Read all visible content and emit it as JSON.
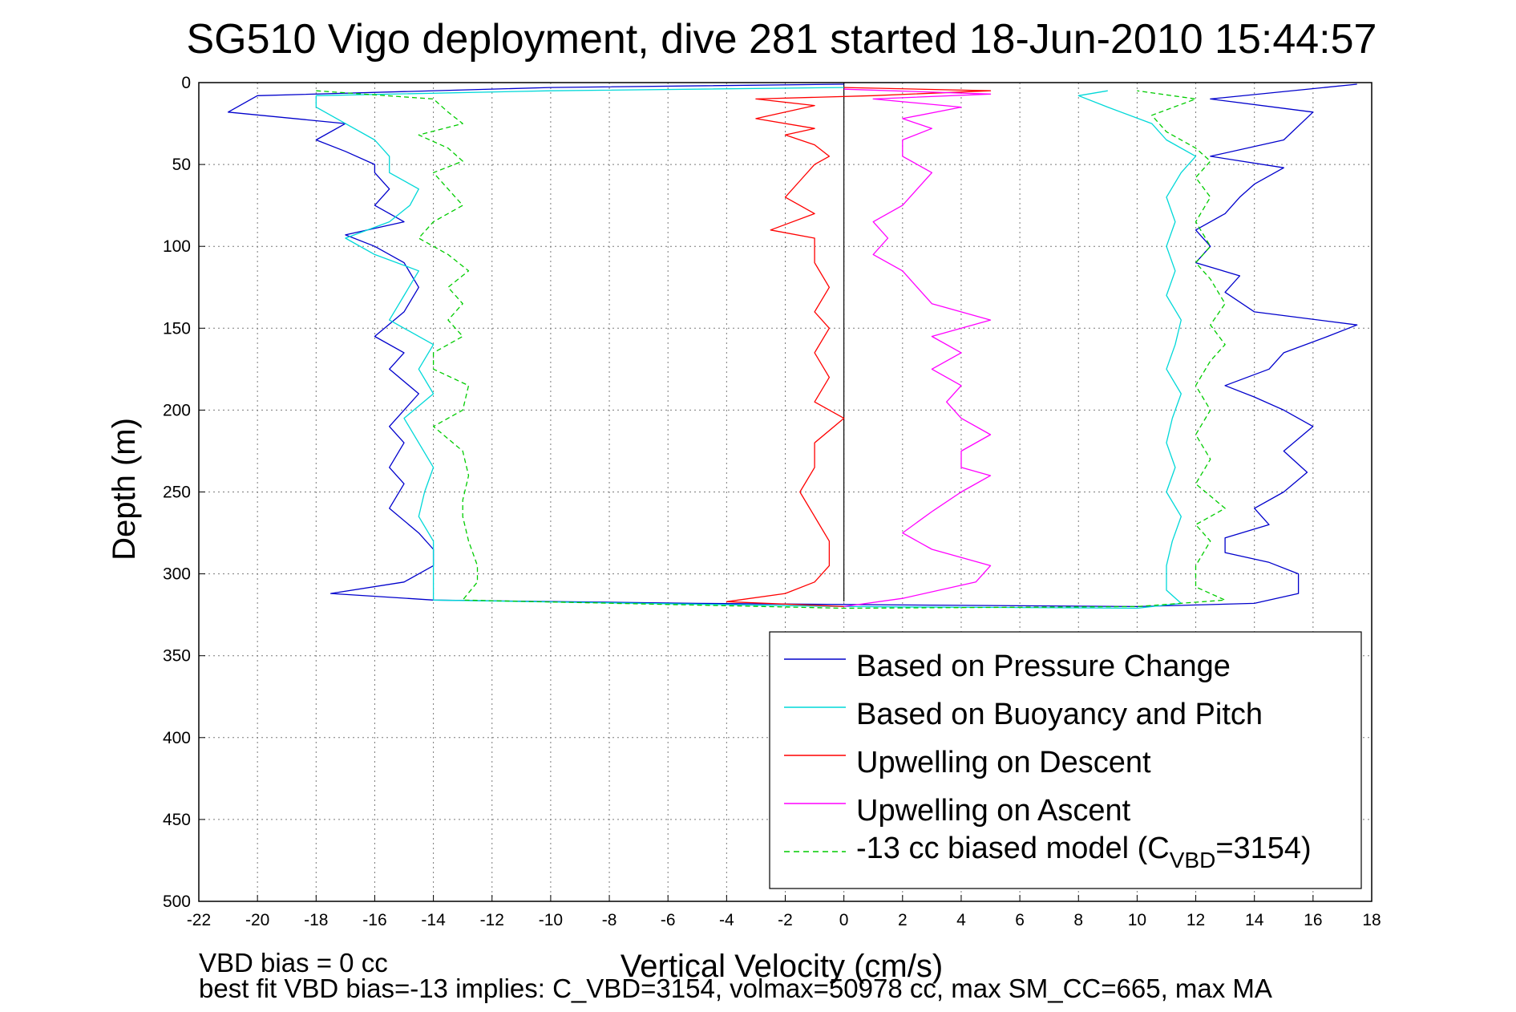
{
  "chart_data": {
    "type": "line",
    "title": "SG510 Vigo deployment, dive 281 started 18-Jun-2010 15:44:57",
    "xlabel": "Vertical Velocity (cm/s)",
    "ylabel": "Depth (m)",
    "xlim": [
      -22,
      18
    ],
    "ylim": [
      0,
      500
    ],
    "y_reversed": true,
    "grid": true,
    "legend_position": "bottom-right",
    "x_ticks": [
      "-22",
      "-20",
      "-18",
      "-16",
      "-14",
      "-12",
      "-10",
      "-8",
      "-6",
      "-4",
      "-2",
      "0",
      "2",
      "4",
      "6",
      "8",
      "10",
      "12",
      "14",
      "16",
      "18"
    ],
    "y_ticks": [
      "0",
      "50",
      "100",
      "150",
      "200",
      "250",
      "300",
      "350",
      "400",
      "450",
      "500"
    ],
    "notes": [
      "VBD bias = 0 cc",
      "best fit VBD bias=-13 implies: C_VBD=3154, volmax=50978 cc, max SM_CC=665, max MA"
    ],
    "legend": {
      "entries": [
        "Based on Pressure Change",
        "Based on Buoyancy and Pitch",
        "Upwelling on Descent",
        "Upwelling on Ascent"
      ],
      "model_prefix": "-13 cc biased model (C",
      "model_sub": "VBD",
      "model_suffix": "=3154)"
    },
    "series": [
      {
        "name": "Based on Pressure Change",
        "color": "#0000cc",
        "style": "solid",
        "points": [
          [
            0,
            1
          ],
          [
            -10,
            3
          ],
          [
            -20,
            8
          ],
          [
            -21,
            18
          ],
          [
            -17,
            25
          ],
          [
            -18,
            35
          ],
          [
            -17,
            42
          ],
          [
            -16,
            50
          ],
          [
            -16,
            55
          ],
          [
            -15.5,
            65
          ],
          [
            -16,
            75
          ],
          [
            -15,
            85
          ],
          [
            -17,
            93
          ],
          [
            -16,
            100
          ],
          [
            -15,
            110
          ],
          [
            -14.5,
            125
          ],
          [
            -15,
            140
          ],
          [
            -16,
            155
          ],
          [
            -15,
            165
          ],
          [
            -15.5,
            175
          ],
          [
            -14.5,
            190
          ],
          [
            -15,
            200
          ],
          [
            -15.5,
            210
          ],
          [
            -15,
            220
          ],
          [
            -15.5,
            235
          ],
          [
            -15,
            245
          ],
          [
            -15.5,
            260
          ],
          [
            -14.5,
            275
          ],
          [
            -14,
            285
          ],
          [
            -14,
            295
          ],
          [
            -15,
            305
          ],
          [
            -17.5,
            312
          ],
          [
            -14,
            316
          ],
          [
            -5,
            318
          ],
          [
            2,
            319
          ],
          [
            10,
            320
          ],
          [
            14,
            318
          ],
          [
            15.5,
            312
          ],
          [
            15.5,
            300
          ],
          [
            14.5,
            293
          ],
          [
            13,
            287
          ],
          [
            13,
            278
          ],
          [
            14.5,
            270
          ],
          [
            14,
            260
          ],
          [
            15,
            250
          ],
          [
            15.8,
            238
          ],
          [
            15,
            225
          ],
          [
            16,
            210
          ],
          [
            15,
            200
          ],
          [
            14,
            192
          ],
          [
            13,
            185
          ],
          [
            14.5,
            175
          ],
          [
            15,
            165
          ],
          [
            16.5,
            155
          ],
          [
            17.5,
            148
          ],
          [
            14,
            140
          ],
          [
            13,
            128
          ],
          [
            13.5,
            118
          ],
          [
            12,
            110
          ],
          [
            12.5,
            100
          ],
          [
            12,
            90
          ],
          [
            13,
            80
          ],
          [
            13.5,
            70
          ],
          [
            14,
            62
          ],
          [
            15,
            52
          ],
          [
            12.5,
            45
          ],
          [
            15,
            35
          ],
          [
            16,
            18
          ],
          [
            12.5,
            10
          ],
          [
            17.5,
            1
          ]
        ]
      },
      {
        "name": "Based on Buoyancy and Pitch",
        "color": "#00d8d8",
        "style": "solid",
        "points": [
          [
            0,
            3
          ],
          [
            -10,
            5
          ],
          [
            -18,
            8
          ],
          [
            -18,
            15
          ],
          [
            -17,
            25
          ],
          [
            -16,
            35
          ],
          [
            -15.5,
            45
          ],
          [
            -15.5,
            55
          ],
          [
            -14.5,
            65
          ],
          [
            -14.8,
            75
          ],
          [
            -15.5,
            85
          ],
          [
            -17,
            95
          ],
          [
            -16,
            105
          ],
          [
            -14.5,
            115
          ],
          [
            -15,
            130
          ],
          [
            -15.5,
            145
          ],
          [
            -14,
            160
          ],
          [
            -14.5,
            175
          ],
          [
            -14,
            190
          ],
          [
            -15,
            205
          ],
          [
            -14.5,
            220
          ],
          [
            -14,
            235
          ],
          [
            -14.3,
            250
          ],
          [
            -14.5,
            265
          ],
          [
            -14,
            280
          ],
          [
            -14,
            295
          ],
          [
            -14,
            305
          ],
          [
            -14,
            316
          ],
          [
            0,
            320
          ],
          [
            10,
            321
          ],
          [
            11.5,
            318
          ],
          [
            11,
            310
          ],
          [
            11,
            295
          ],
          [
            11.2,
            280
          ],
          [
            11.5,
            265
          ],
          [
            11,
            250
          ],
          [
            11.3,
            235
          ],
          [
            11,
            220
          ],
          [
            11.2,
            205
          ],
          [
            11.5,
            190
          ],
          [
            11,
            175
          ],
          [
            11.3,
            160
          ],
          [
            11.5,
            145
          ],
          [
            11,
            130
          ],
          [
            11.3,
            115
          ],
          [
            11,
            100
          ],
          [
            11.3,
            85
          ],
          [
            11,
            70
          ],
          [
            11.5,
            55
          ],
          [
            12,
            45
          ],
          [
            11,
            35
          ],
          [
            10.5,
            25
          ],
          [
            9,
            15
          ],
          [
            8,
            8
          ],
          [
            9,
            5
          ]
        ]
      },
      {
        "name": "Upwelling on Descent",
        "color": "#ff0000",
        "style": "solid",
        "points": [
          [
            0,
            3
          ],
          [
            5,
            5
          ],
          [
            1,
            8
          ],
          [
            -3,
            10
          ],
          [
            -1,
            14
          ],
          [
            -2,
            18
          ],
          [
            -3,
            22
          ],
          [
            -1,
            28
          ],
          [
            -2,
            32
          ],
          [
            -1,
            38
          ],
          [
            -0.5,
            45
          ],
          [
            -1,
            50
          ],
          [
            -1.5,
            60
          ],
          [
            -2,
            70
          ],
          [
            -1,
            80
          ],
          [
            -2.5,
            90
          ],
          [
            -1,
            95
          ],
          [
            -1,
            110
          ],
          [
            -0.5,
            125
          ],
          [
            -1,
            140
          ],
          [
            -0.5,
            150
          ],
          [
            -1,
            165
          ],
          [
            -0.5,
            180
          ],
          [
            -1,
            195
          ],
          [
            0,
            205
          ],
          [
            -1,
            220
          ],
          [
            -1,
            235
          ],
          [
            -1.5,
            250
          ],
          [
            -1,
            265
          ],
          [
            -0.5,
            280
          ],
          [
            -0.5,
            295
          ],
          [
            -1,
            305
          ],
          [
            -2,
            312
          ],
          [
            -4,
            317
          ],
          [
            0,
            320
          ]
        ]
      },
      {
        "name": "Upwelling on Ascent",
        "color": "#ff00ff",
        "style": "solid",
        "points": [
          [
            0,
            4
          ],
          [
            5,
            7
          ],
          [
            1,
            10
          ],
          [
            4,
            15
          ],
          [
            2,
            22
          ],
          [
            3,
            28
          ],
          [
            2,
            35
          ],
          [
            2,
            45
          ],
          [
            3,
            55
          ],
          [
            2.5,
            65
          ],
          [
            2,
            75
          ],
          [
            1,
            85
          ],
          [
            1.5,
            95
          ],
          [
            1,
            105
          ],
          [
            2,
            115
          ],
          [
            2.5,
            125
          ],
          [
            3,
            135
          ],
          [
            5,
            145
          ],
          [
            3,
            155
          ],
          [
            4,
            165
          ],
          [
            3,
            175
          ],
          [
            4,
            185
          ],
          [
            3.5,
            195
          ],
          [
            4,
            205
          ],
          [
            5,
            215
          ],
          [
            4,
            225
          ],
          [
            4,
            235
          ],
          [
            5,
            240
          ],
          [
            4,
            250
          ],
          [
            3,
            262
          ],
          [
            2,
            275
          ],
          [
            3,
            285
          ],
          [
            5,
            295
          ],
          [
            4.5,
            305
          ],
          [
            2,
            315
          ],
          [
            0,
            320
          ]
        ]
      },
      {
        "name": "-13 cc biased model (C_VBD=3154)",
        "color": "#00cc00",
        "style": "dashed",
        "points": [
          [
            -18,
            5
          ],
          [
            -14,
            10
          ],
          [
            -13.5,
            18
          ],
          [
            -13,
            25
          ],
          [
            -14.5,
            32
          ],
          [
            -13.5,
            40
          ],
          [
            -13,
            48
          ],
          [
            -14,
            55
          ],
          [
            -13.5,
            65
          ],
          [
            -13,
            75
          ],
          [
            -14,
            85
          ],
          [
            -14.5,
            95
          ],
          [
            -13.5,
            105
          ],
          [
            -12.8,
            115
          ],
          [
            -13.5,
            125
          ],
          [
            -13,
            135
          ],
          [
            -13.5,
            145
          ],
          [
            -13,
            155
          ],
          [
            -14,
            165
          ],
          [
            -14,
            175
          ],
          [
            -12.8,
            185
          ],
          [
            -13,
            200
          ],
          [
            -14,
            210
          ],
          [
            -13,
            225
          ],
          [
            -12.8,
            240
          ],
          [
            -13,
            255
          ],
          [
            -13,
            265
          ],
          [
            -12.8,
            280
          ],
          [
            -12.5,
            295
          ],
          [
            -12.5,
            305
          ],
          [
            -13,
            316
          ],
          [
            0,
            321
          ],
          [
            10,
            320
          ],
          [
            13,
            316
          ],
          [
            12,
            308
          ],
          [
            12,
            295
          ],
          [
            12.5,
            280
          ],
          [
            12,
            270
          ],
          [
            13,
            260
          ],
          [
            12,
            245
          ],
          [
            12.5,
            230
          ],
          [
            12,
            215
          ],
          [
            12.5,
            200
          ],
          [
            12,
            185
          ],
          [
            12.5,
            170
          ],
          [
            13,
            160
          ],
          [
            12.5,
            148
          ],
          [
            13,
            135
          ],
          [
            12.5,
            120
          ],
          [
            12,
            110
          ],
          [
            12.5,
            100
          ],
          [
            12,
            85
          ],
          [
            12.5,
            70
          ],
          [
            12,
            58
          ],
          [
            12.5,
            48
          ],
          [
            12,
            40
          ],
          [
            11,
            30
          ],
          [
            10.5,
            20
          ],
          [
            12,
            10
          ],
          [
            10,
            5
          ]
        ]
      }
    ]
  }
}
